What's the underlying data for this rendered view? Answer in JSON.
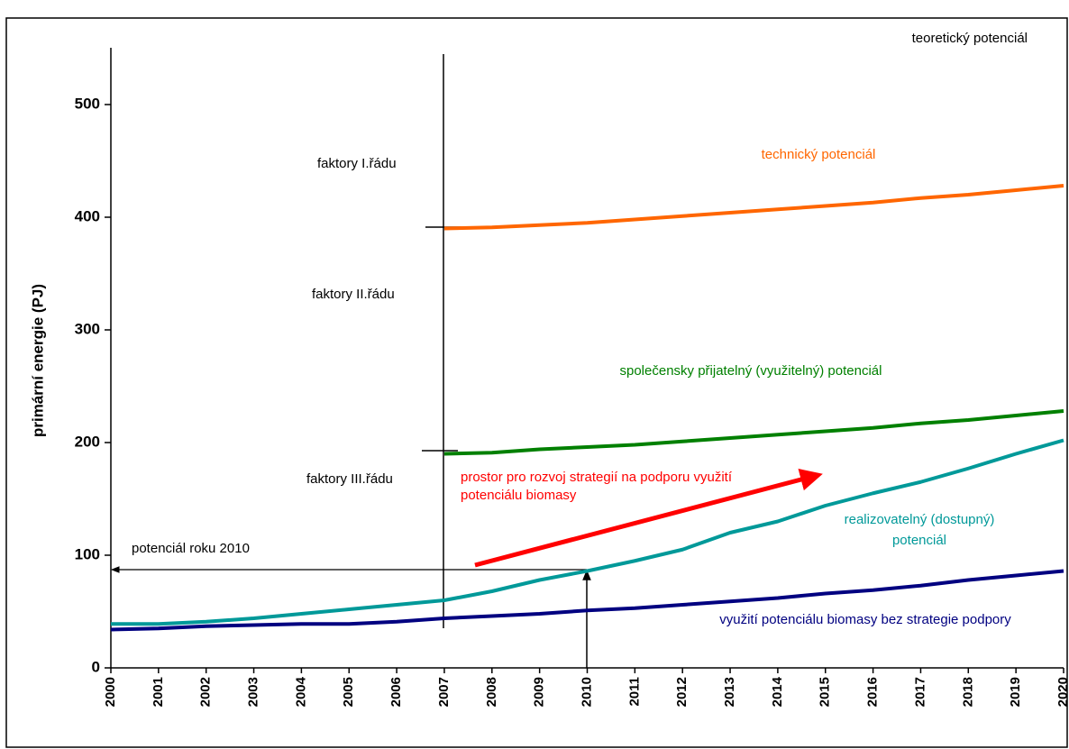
{
  "chart_data": {
    "type": "line",
    "y_label": "primární energie (PJ)",
    "x": [
      2000,
      2001,
      2002,
      2003,
      2004,
      2005,
      2006,
      2007,
      2008,
      2009,
      2010,
      2011,
      2012,
      2013,
      2014,
      2015,
      2016,
      2017,
      2018,
      2019,
      2020
    ],
    "xlim": [
      2000,
      2020
    ],
    "xticks": [
      2000,
      2001,
      2002,
      2003,
      2004,
      2005,
      2006,
      2007,
      2008,
      2009,
      2010,
      2011,
      2012,
      2013,
      2014,
      2015,
      2016,
      2017,
      2018,
      2019,
      2020
    ],
    "ylim": [
      0,
      550
    ],
    "yticks": [
      0,
      100,
      200,
      300,
      400,
      500
    ],
    "grid": false,
    "series": [
      {
        "name": "technický potenciál",
        "color": "#ff6600",
        "values": [
          null,
          null,
          null,
          null,
          null,
          null,
          null,
          390,
          391,
          393,
          395,
          398,
          401,
          404,
          407,
          410,
          413,
          417,
          420,
          424,
          428
        ]
      },
      {
        "name": "společensky přijatelný (využitelný) potenciál",
        "color": "#008000",
        "values": [
          null,
          null,
          null,
          null,
          null,
          null,
          null,
          190,
          191,
          194,
          196,
          198,
          201,
          204,
          207,
          210,
          213,
          217,
          220,
          224,
          228
        ]
      },
      {
        "name": "realizovatelný (dostupný) potenciál",
        "color": "#009999",
        "values": [
          39,
          39,
          41,
          44,
          48,
          52,
          56,
          60,
          68,
          78,
          86,
          95,
          105,
          120,
          130,
          144,
          155,
          165,
          177,
          190,
          202
        ]
      },
      {
        "name": "využití potenciálu biomasy bez strategie podpory",
        "color": "#000080",
        "values": [
          34,
          35,
          37,
          38,
          39,
          39,
          41,
          44,
          46,
          48,
          51,
          53,
          56,
          59,
          62,
          66,
          69,
          73,
          78,
          82,
          86
        ]
      }
    ],
    "annotations": [
      "teoretický potenciál",
      "faktory I.řádu",
      "faktory II.řádu",
      "faktory III.řádu",
      "prostor pro rozvoj strategií na podporu využití potenciálu biomasy",
      "potenciál roku 2010"
    ]
  }
}
